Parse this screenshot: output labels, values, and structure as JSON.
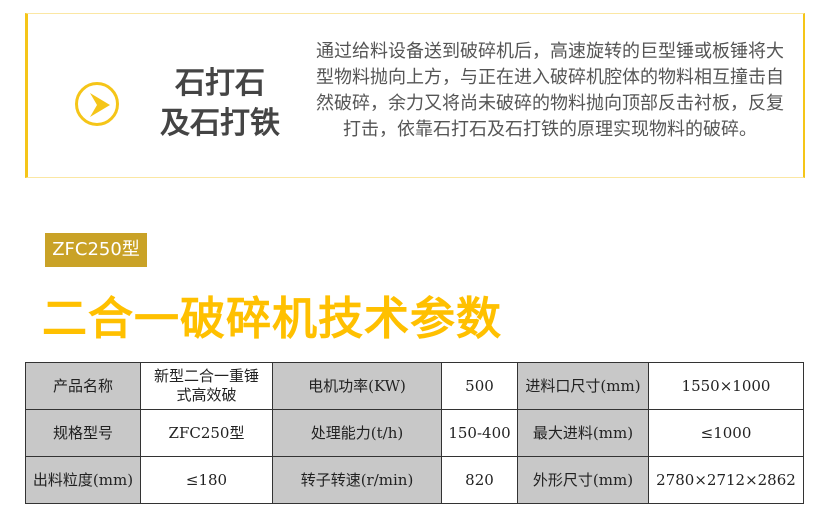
{
  "feature": {
    "icon": "chevron-right-circle-icon",
    "heading_lines": [
      "石打石",
      "及石打铁"
    ],
    "description": "通过给料设备送到破碎机后，高速旋转的巨型锤或板锤将大型物料抛向上方，与正在进入破碎机腔体的物料相互撞击自然破碎，余力又将尚未破碎的物料抛向顶部反击衬板，反复打击，依靠石打石及石打铁的原理实现物料的破碎。"
  },
  "model_tag": "ZFC250型",
  "section_title": "二合一破碎机技术参数",
  "colors": {
    "accent": "#f5c518",
    "tag": "#c9a227",
    "title": "#ffc000",
    "label_cell": "#c8c8c8"
  },
  "specs": [
    [
      {
        "k": "产品名称",
        "v": "新型二合一重锤式高效破"
      },
      {
        "k": "电机功率(KW)",
        "v": "500"
      },
      {
        "k": "进料口尺寸(mm)",
        "v": "1550×1000"
      }
    ],
    [
      {
        "k": "规格型号",
        "v": "ZFC250型"
      },
      {
        "k": "处理能力(t/h)",
        "v": "150-400"
      },
      {
        "k": "最大进料(mm)",
        "v": "≤1000"
      }
    ],
    [
      {
        "k": "出料粒度(mm)",
        "v": "≤180"
      },
      {
        "k": "转子转速(r/min)",
        "v": "820"
      },
      {
        "k": "外形尺寸(mm)",
        "v": "2780×2712×2862"
      }
    ]
  ]
}
